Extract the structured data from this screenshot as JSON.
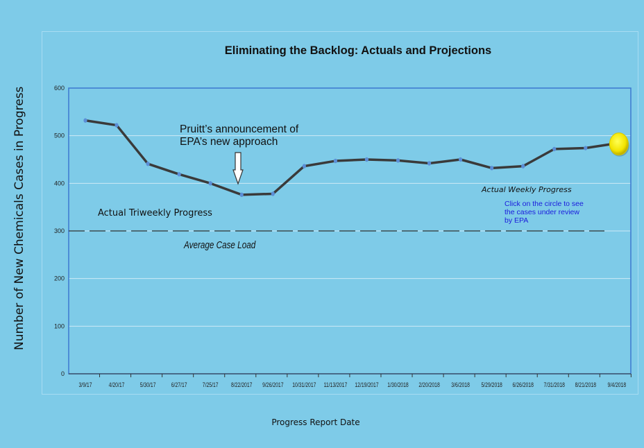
{
  "chart_data": {
    "type": "line",
    "title": "Eliminating the Backlog:  Actuals and Projections",
    "ylabel": "Number of New Chemicals Cases in Progress",
    "xlabel": "Progress Report Date",
    "ylim": [
      0,
      600
    ],
    "yticks": [
      0,
      100,
      200,
      300,
      400,
      500,
      600
    ],
    "grid": true,
    "categories": [
      "3/9/17",
      "4/20/17",
      "5/30/17",
      "6/27/17",
      "7/25/17",
      "8/22/2017",
      "9/26/2017",
      "10/31/2017",
      "11/13/2017",
      "12/19/2017",
      "1/30/2018",
      "2/20/2018",
      "3/6/2018",
      "5/29/2018",
      "6/26/2018",
      "7/31/2018",
      "8/21/2018",
      "9/4/2018"
    ],
    "series": [
      {
        "values": [
          532,
          522,
          441,
          419,
          400,
          376,
          378,
          436,
          447,
          450,
          448,
          442,
          450,
          432,
          436,
          472,
          474,
          484
        ],
        "color": "#3a3a3a"
      }
    ],
    "reference_line": {
      "value": 300,
      "label": "Average Case Load",
      "style": "dashed"
    },
    "annotations": {
      "announcement": "Pruitt’s announcement of EPA’s new approach",
      "triweekly": "Actual Triweekly Progress",
      "weekly": "Actual Weekly Progress",
      "click_note": "Click on the circle to see the cases under review by EPA"
    }
  },
  "colors": {
    "background": "#7ecbe8",
    "plot_border": "#3b78d0",
    "line": "#3a3a3a",
    "marker": "#5b8ed6",
    "highlight": "#f6ec00",
    "link_text": "#1a1adc"
  }
}
